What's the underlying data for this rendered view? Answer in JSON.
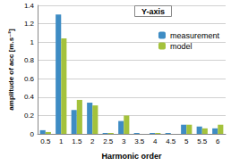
{
  "chart_data": {
    "type": "bar",
    "title": "Y-axis",
    "x_label": "Harmonic order",
    "y_label": "amplitude of acc [m.s⁻²]",
    "categories": [
      "0.5",
      "1",
      "1.5",
      "2",
      "2.5",
      "3",
      "3.5",
      "4",
      "4.5",
      "5",
      "5.5",
      "6"
    ],
    "series": [
      {
        "name": "measurement",
        "color": "#3e8cc4",
        "values": [
          0.04,
          1.3,
          0.26,
          0.34,
          0.01,
          0.14,
          0.01,
          0.01,
          0.01,
          0.1,
          0.08,
          0.06
        ]
      },
      {
        "name": "model",
        "color": "#a4c23c",
        "values": [
          0.02,
          1.04,
          0.37,
          0.31,
          0.01,
          0.2,
          0,
          0.01,
          0,
          0.1,
          0.06,
          0.1
        ]
      }
    ],
    "ylim": [
      0,
      1.4
    ],
    "yticks": [
      0,
      0.2,
      0.4,
      0.6,
      0.8,
      1,
      1.2,
      1.4
    ],
    "grid": true,
    "legend": "top-right"
  }
}
